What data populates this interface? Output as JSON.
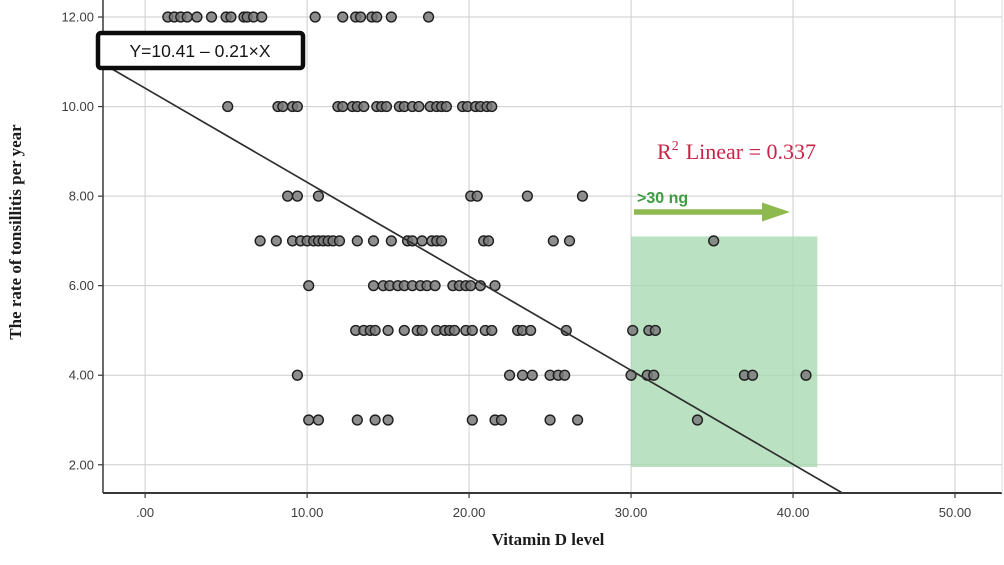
{
  "annotations": {
    "equation_label": "Y=10.41 – 0.21×X",
    "r2_base": "R",
    "r2_sup": "2",
    "r2_rest": "Linear = 0.337",
    "region_label": ">30 ng"
  },
  "colors": {
    "r2_text": "#cb2347",
    "region_fill": "#a9d9b2",
    "region_label_text": "#3f9b40",
    "arrow": "#8eb94e",
    "point_fill": "#7a7a7a",
    "point_stroke": "#1e1e1e",
    "grid": "#cdcdcd",
    "axis": "#383838",
    "regression_line": "#2e2e2e"
  },
  "chart_data": {
    "type": "scatter",
    "title": "",
    "xlabel": "Vitamin D level",
    "ylabel": "The rate of tonsillitis per year",
    "xlim": [
      -2.6,
      52.9
    ],
    "ylim": [
      1.37,
      12.38
    ],
    "x_ticks": [
      0,
      10,
      20,
      30,
      40,
      50
    ],
    "x_tick_labels": [
      ".00",
      "10.00",
      "20.00",
      "30.00",
      "40.00",
      "50.00"
    ],
    "y_ticks": [
      2,
      4,
      6,
      8,
      10,
      12
    ],
    "y_tick_labels": [
      "2.00",
      "4.00",
      "6.00",
      "8.00",
      "10.00",
      "12.00"
    ],
    "grid": true,
    "legend": "none",
    "regression": {
      "label": "Y=10.41 – 0.21×X",
      "intercept": 10.41,
      "slope": -0.21
    },
    "r_squared": 0.337,
    "highlight_region": {
      "label": ">30 ng",
      "x_min": 30.0,
      "x_max": 41.5,
      "y_min": 1.95,
      "y_max": 7.1
    },
    "points": [
      [
        1.4,
        12
      ],
      [
        1.8,
        12
      ],
      [
        2.2,
        12
      ],
      [
        2.6,
        12
      ],
      [
        3.2,
        12
      ],
      [
        4.1,
        12
      ],
      [
        5.0,
        12
      ],
      [
        5.3,
        12
      ],
      [
        6.1,
        12
      ],
      [
        6.3,
        12
      ],
      [
        6.7,
        12
      ],
      [
        7.2,
        12
      ],
      [
        10.5,
        12
      ],
      [
        12.2,
        12
      ],
      [
        13.0,
        12
      ],
      [
        13.3,
        12
      ],
      [
        14.0,
        12
      ],
      [
        14.3,
        12
      ],
      [
        15.2,
        12
      ],
      [
        17.5,
        12
      ],
      [
        5.1,
        10
      ],
      [
        8.2,
        10
      ],
      [
        8.5,
        10
      ],
      [
        9.1,
        10
      ],
      [
        9.4,
        10
      ],
      [
        11.9,
        10
      ],
      [
        12.2,
        10
      ],
      [
        12.8,
        10
      ],
      [
        13.1,
        10
      ],
      [
        13.5,
        10
      ],
      [
        14.3,
        10
      ],
      [
        14.6,
        10
      ],
      [
        14.9,
        10
      ],
      [
        15.7,
        10
      ],
      [
        16.0,
        10
      ],
      [
        16.5,
        10
      ],
      [
        16.9,
        10
      ],
      [
        17.6,
        10
      ],
      [
        18.0,
        10
      ],
      [
        18.3,
        10
      ],
      [
        18.6,
        10
      ],
      [
        19.6,
        10
      ],
      [
        19.9,
        10
      ],
      [
        20.4,
        10
      ],
      [
        20.7,
        10
      ],
      [
        21.1,
        10
      ],
      [
        21.4,
        10
      ],
      [
        8.8,
        8
      ],
      [
        9.4,
        8
      ],
      [
        10.7,
        8
      ],
      [
        20.1,
        8
      ],
      [
        20.5,
        8
      ],
      [
        23.6,
        8
      ],
      [
        27.0,
        8
      ],
      [
        7.1,
        7
      ],
      [
        8.1,
        7
      ],
      [
        9.1,
        7
      ],
      [
        9.6,
        7
      ],
      [
        10.0,
        7
      ],
      [
        10.4,
        7
      ],
      [
        10.7,
        7
      ],
      [
        11.0,
        7
      ],
      [
        11.3,
        7
      ],
      [
        11.6,
        7
      ],
      [
        12.0,
        7
      ],
      [
        13.1,
        7
      ],
      [
        14.1,
        7
      ],
      [
        15.2,
        7
      ],
      [
        16.2,
        7
      ],
      [
        16.5,
        7
      ],
      [
        17.1,
        7
      ],
      [
        17.7,
        7
      ],
      [
        18.0,
        7
      ],
      [
        18.3,
        7
      ],
      [
        20.9,
        7
      ],
      [
        21.2,
        7
      ],
      [
        25.2,
        7
      ],
      [
        26.2,
        7
      ],
      [
        35.1,
        7
      ],
      [
        10.1,
        6
      ],
      [
        14.1,
        6
      ],
      [
        14.7,
        6
      ],
      [
        15.1,
        6
      ],
      [
        15.6,
        6
      ],
      [
        16.0,
        6
      ],
      [
        16.5,
        6
      ],
      [
        17.0,
        6
      ],
      [
        17.4,
        6
      ],
      [
        17.9,
        6
      ],
      [
        19.0,
        6
      ],
      [
        19.4,
        6
      ],
      [
        19.8,
        6
      ],
      [
        20.1,
        6
      ],
      [
        20.7,
        6
      ],
      [
        21.6,
        6
      ],
      [
        13.0,
        5
      ],
      [
        13.5,
        5
      ],
      [
        13.9,
        5
      ],
      [
        14.2,
        5
      ],
      [
        15.0,
        5
      ],
      [
        16.0,
        5
      ],
      [
        16.8,
        5
      ],
      [
        17.1,
        5
      ],
      [
        18.0,
        5
      ],
      [
        18.5,
        5
      ],
      [
        18.8,
        5
      ],
      [
        19.1,
        5
      ],
      [
        19.8,
        5
      ],
      [
        20.2,
        5
      ],
      [
        21.0,
        5
      ],
      [
        21.4,
        5
      ],
      [
        23.0,
        5
      ],
      [
        23.3,
        5
      ],
      [
        23.8,
        5
      ],
      [
        26.0,
        5
      ],
      [
        30.1,
        5
      ],
      [
        31.1,
        5
      ],
      [
        31.5,
        5
      ],
      [
        9.4,
        4
      ],
      [
        22.5,
        4
      ],
      [
        23.3,
        4
      ],
      [
        23.9,
        4
      ],
      [
        25.0,
        4
      ],
      [
        25.5,
        4
      ],
      [
        25.9,
        4
      ],
      [
        30.0,
        4
      ],
      [
        31.0,
        4
      ],
      [
        31.4,
        4
      ],
      [
        37.0,
        4
      ],
      [
        37.5,
        4
      ],
      [
        40.8,
        4
      ],
      [
        10.1,
        3
      ],
      [
        10.7,
        3
      ],
      [
        13.1,
        3
      ],
      [
        14.2,
        3
      ],
      [
        15.0,
        3
      ],
      [
        20.2,
        3
      ],
      [
        21.6,
        3
      ],
      [
        22.0,
        3
      ],
      [
        25.0,
        3
      ],
      [
        26.7,
        3
      ],
      [
        34.1,
        3
      ]
    ]
  }
}
